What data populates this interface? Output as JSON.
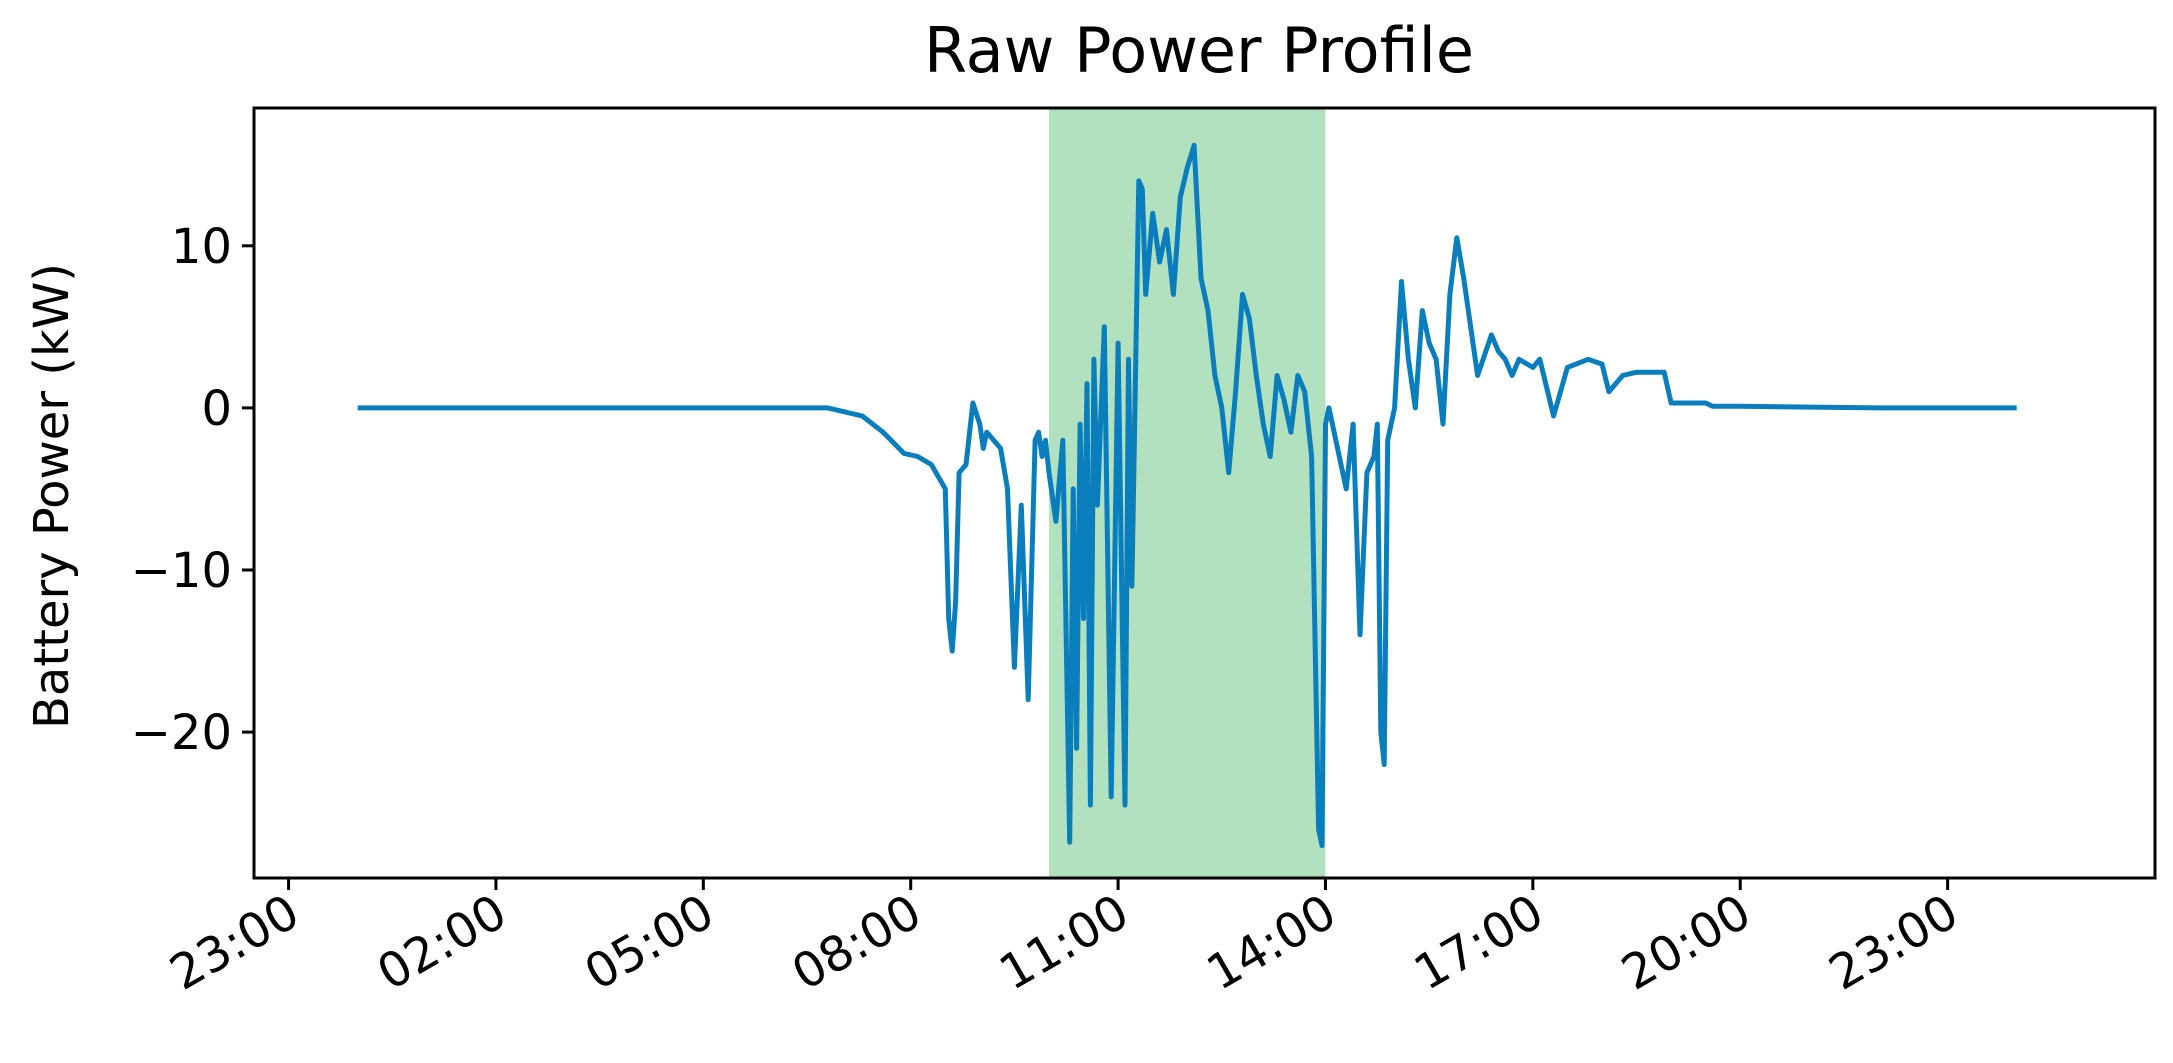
{
  "chart_data": {
    "type": "line",
    "title": "Raw Power Profile",
    "xlabel": "",
    "ylabel": "Battery Power (kW)",
    "x_unit": "time of day (hours after 00:00 of day 1)",
    "xlim": [
      -1.5,
      26.0
    ],
    "ylim": [
      -29,
      18.5
    ],
    "x_ticks": [
      {
        "value": -1,
        "label": "23:00"
      },
      {
        "value": 2,
        "label": "02:00"
      },
      {
        "value": 5,
        "label": "05:00"
      },
      {
        "value": 8,
        "label": "08:00"
      },
      {
        "value": 11,
        "label": "11:00"
      },
      {
        "value": 14,
        "label": "14:00"
      },
      {
        "value": 17,
        "label": "17:00"
      },
      {
        "value": 20,
        "label": "20:00"
      },
      {
        "value": 23,
        "label": "23:00"
      }
    ],
    "y_ticks": [
      {
        "value": 10,
        "label": "10"
      },
      {
        "value": 0,
        "label": "0"
      },
      {
        "value": -10,
        "label": "−10"
      },
      {
        "value": -20,
        "label": "−20"
      }
    ],
    "grid": false,
    "shaded_region": {
      "x_start": 10.0,
      "x_end": 14.0,
      "color": "#9fd9b0"
    },
    "series": [
      {
        "color": "#0a7ebd",
        "x": [
          0.0,
          6.8,
          7.3,
          7.6,
          7.9,
          8.1,
          8.3,
          8.5,
          8.55,
          8.6,
          8.65,
          8.7,
          8.8,
          8.9,
          9.0,
          9.05,
          9.1,
          9.2,
          9.3,
          9.4,
          9.5,
          9.6,
          9.7,
          9.8,
          9.85,
          9.9,
          9.95,
          10.0,
          10.1,
          10.2,
          10.3,
          10.35,
          10.4,
          10.45,
          10.5,
          10.55,
          10.6,
          10.65,
          10.7,
          10.8,
          10.9,
          11.0,
          11.1,
          11.15,
          11.2,
          11.3,
          11.35,
          11.4,
          11.5,
          11.6,
          11.7,
          11.8,
          11.9,
          12.0,
          12.1,
          12.2,
          12.3,
          12.4,
          12.5,
          12.6,
          12.7,
          12.8,
          12.9,
          13.0,
          13.1,
          13.2,
          13.3,
          13.4,
          13.5,
          13.6,
          13.7,
          13.8,
          13.9,
          13.95,
          14.0,
          14.05,
          14.1,
          14.2,
          14.3,
          14.4,
          14.5,
          14.6,
          14.7,
          14.75,
          14.8,
          14.85,
          14.9,
          15.0,
          15.1,
          15.2,
          15.3,
          15.4,
          15.5,
          15.6,
          15.7,
          15.8,
          15.9,
          16.0,
          16.2,
          16.4,
          16.5,
          16.6,
          16.7,
          16.8,
          17.0,
          17.1,
          17.3,
          17.5,
          17.8,
          18.0,
          18.1,
          18.3,
          18.5,
          18.9,
          19.0,
          19.2,
          19.5,
          19.6,
          20.0,
          22.0,
          24.0
        ],
        "y": [
          0.0,
          0.0,
          -0.5,
          -1.5,
          -2.8,
          -3.0,
          -3.5,
          -5.0,
          -13.0,
          -15.0,
          -12.0,
          -4.0,
          -3.5,
          0.3,
          -1.0,
          -2.5,
          -1.5,
          -2.0,
          -2.5,
          -5.0,
          -16.0,
          -6.0,
          -18.0,
          -2.0,
          -1.5,
          -3.0,
          -2.0,
          -4.0,
          -7.0,
          -2.0,
          -26.8,
          -5.0,
          -21.0,
          -1.0,
          -13.0,
          1.5,
          -24.5,
          3.0,
          -6.0,
          5.0,
          -24.0,
          4.0,
          -24.5,
          3.0,
          -11.0,
          14.0,
          13.5,
          7.0,
          12.0,
          9.0,
          11.0,
          7.0,
          13.0,
          14.8,
          16.2,
          8.0,
          6.0,
          2.0,
          0.0,
          -4.0,
          1.0,
          7.0,
          5.5,
          2.0,
          -1.0,
          -3.0,
          2.0,
          0.5,
          -1.5,
          2.0,
          1.0,
          -3.0,
          -26.0,
          -27.0,
          -1.0,
          0.0,
          -1.0,
          -3.0,
          -5.0,
          -1.0,
          -14.0,
          -4.0,
          -3.0,
          -1.0,
          -20.0,
          -22.0,
          -2.0,
          0.0,
          7.8,
          3.0,
          0.0,
          6.0,
          4.0,
          3.0,
          -1.0,
          7.0,
          10.5,
          8.0,
          2.0,
          4.5,
          3.5,
          3.0,
          2.0,
          3.0,
          2.5,
          3.0,
          -0.5,
          2.5,
          3.0,
          2.7,
          1.0,
          2.0,
          2.2,
          2.2,
          0.3,
          0.3,
          0.3,
          0.1,
          0.1,
          0.0,
          0.0
        ]
      }
    ]
  }
}
